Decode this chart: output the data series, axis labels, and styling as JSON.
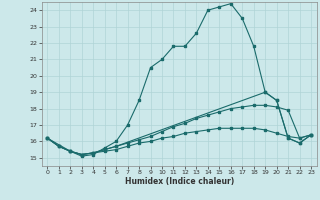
{
  "title": "",
  "xlabel": "Humidex (Indice chaleur)",
  "bg_color": "#cce8ea",
  "line_color": "#1a6b6b",
  "grid_color": "#b0d4d6",
  "xlim": [
    -0.5,
    23.5
  ],
  "ylim": [
    14.5,
    24.5
  ],
  "xticks": [
    0,
    1,
    2,
    3,
    4,
    5,
    6,
    7,
    8,
    9,
    10,
    11,
    12,
    13,
    14,
    15,
    16,
    17,
    18,
    19,
    20,
    21,
    22,
    23
  ],
  "yticks": [
    15,
    16,
    17,
    18,
    19,
    20,
    21,
    22,
    23,
    24
  ],
  "line1_x": [
    0,
    1,
    2,
    3,
    4,
    5,
    6,
    7,
    8,
    9,
    10,
    11,
    12,
    13,
    14,
    15,
    16,
    17,
    18,
    19,
    20,
    21,
    22,
    23
  ],
  "line1_y": [
    16.2,
    15.7,
    15.4,
    15.1,
    15.2,
    15.6,
    16.0,
    17.0,
    18.5,
    20.5,
    21.0,
    21.8,
    21.8,
    22.6,
    24.0,
    24.2,
    24.4,
    23.5,
    21.8,
    19.0,
    18.5,
    16.2,
    15.9,
    16.4
  ],
  "line2_x": [
    0,
    2,
    3,
    4,
    5,
    6,
    19,
    20,
    21,
    22,
    23
  ],
  "line2_y": [
    16.2,
    15.4,
    15.2,
    15.3,
    15.5,
    15.7,
    19.0,
    18.5,
    16.2,
    15.9,
    16.4
  ],
  "line3_x": [
    0,
    1,
    2,
    3,
    4,
    5,
    6,
    7,
    8,
    9,
    10,
    11,
    12,
    13,
    14,
    15,
    16,
    17,
    18,
    19,
    20,
    21,
    22,
    23
  ],
  "line3_y": [
    16.2,
    15.7,
    15.4,
    15.2,
    15.3,
    15.5,
    15.7,
    15.9,
    16.1,
    16.3,
    16.6,
    16.9,
    17.1,
    17.4,
    17.6,
    17.8,
    18.0,
    18.1,
    18.2,
    18.2,
    18.1,
    17.9,
    16.2,
    16.4
  ],
  "line4_x": [
    0,
    1,
    2,
    3,
    4,
    5,
    6,
    7,
    8,
    9,
    10,
    11,
    12,
    13,
    14,
    15,
    16,
    17,
    18,
    19,
    20,
    21,
    22,
    23
  ],
  "line4_y": [
    16.2,
    15.7,
    15.4,
    15.2,
    15.3,
    15.4,
    15.5,
    15.7,
    15.9,
    16.0,
    16.2,
    16.3,
    16.5,
    16.6,
    16.7,
    16.8,
    16.8,
    16.8,
    16.8,
    16.7,
    16.5,
    16.3,
    16.2,
    16.4
  ]
}
